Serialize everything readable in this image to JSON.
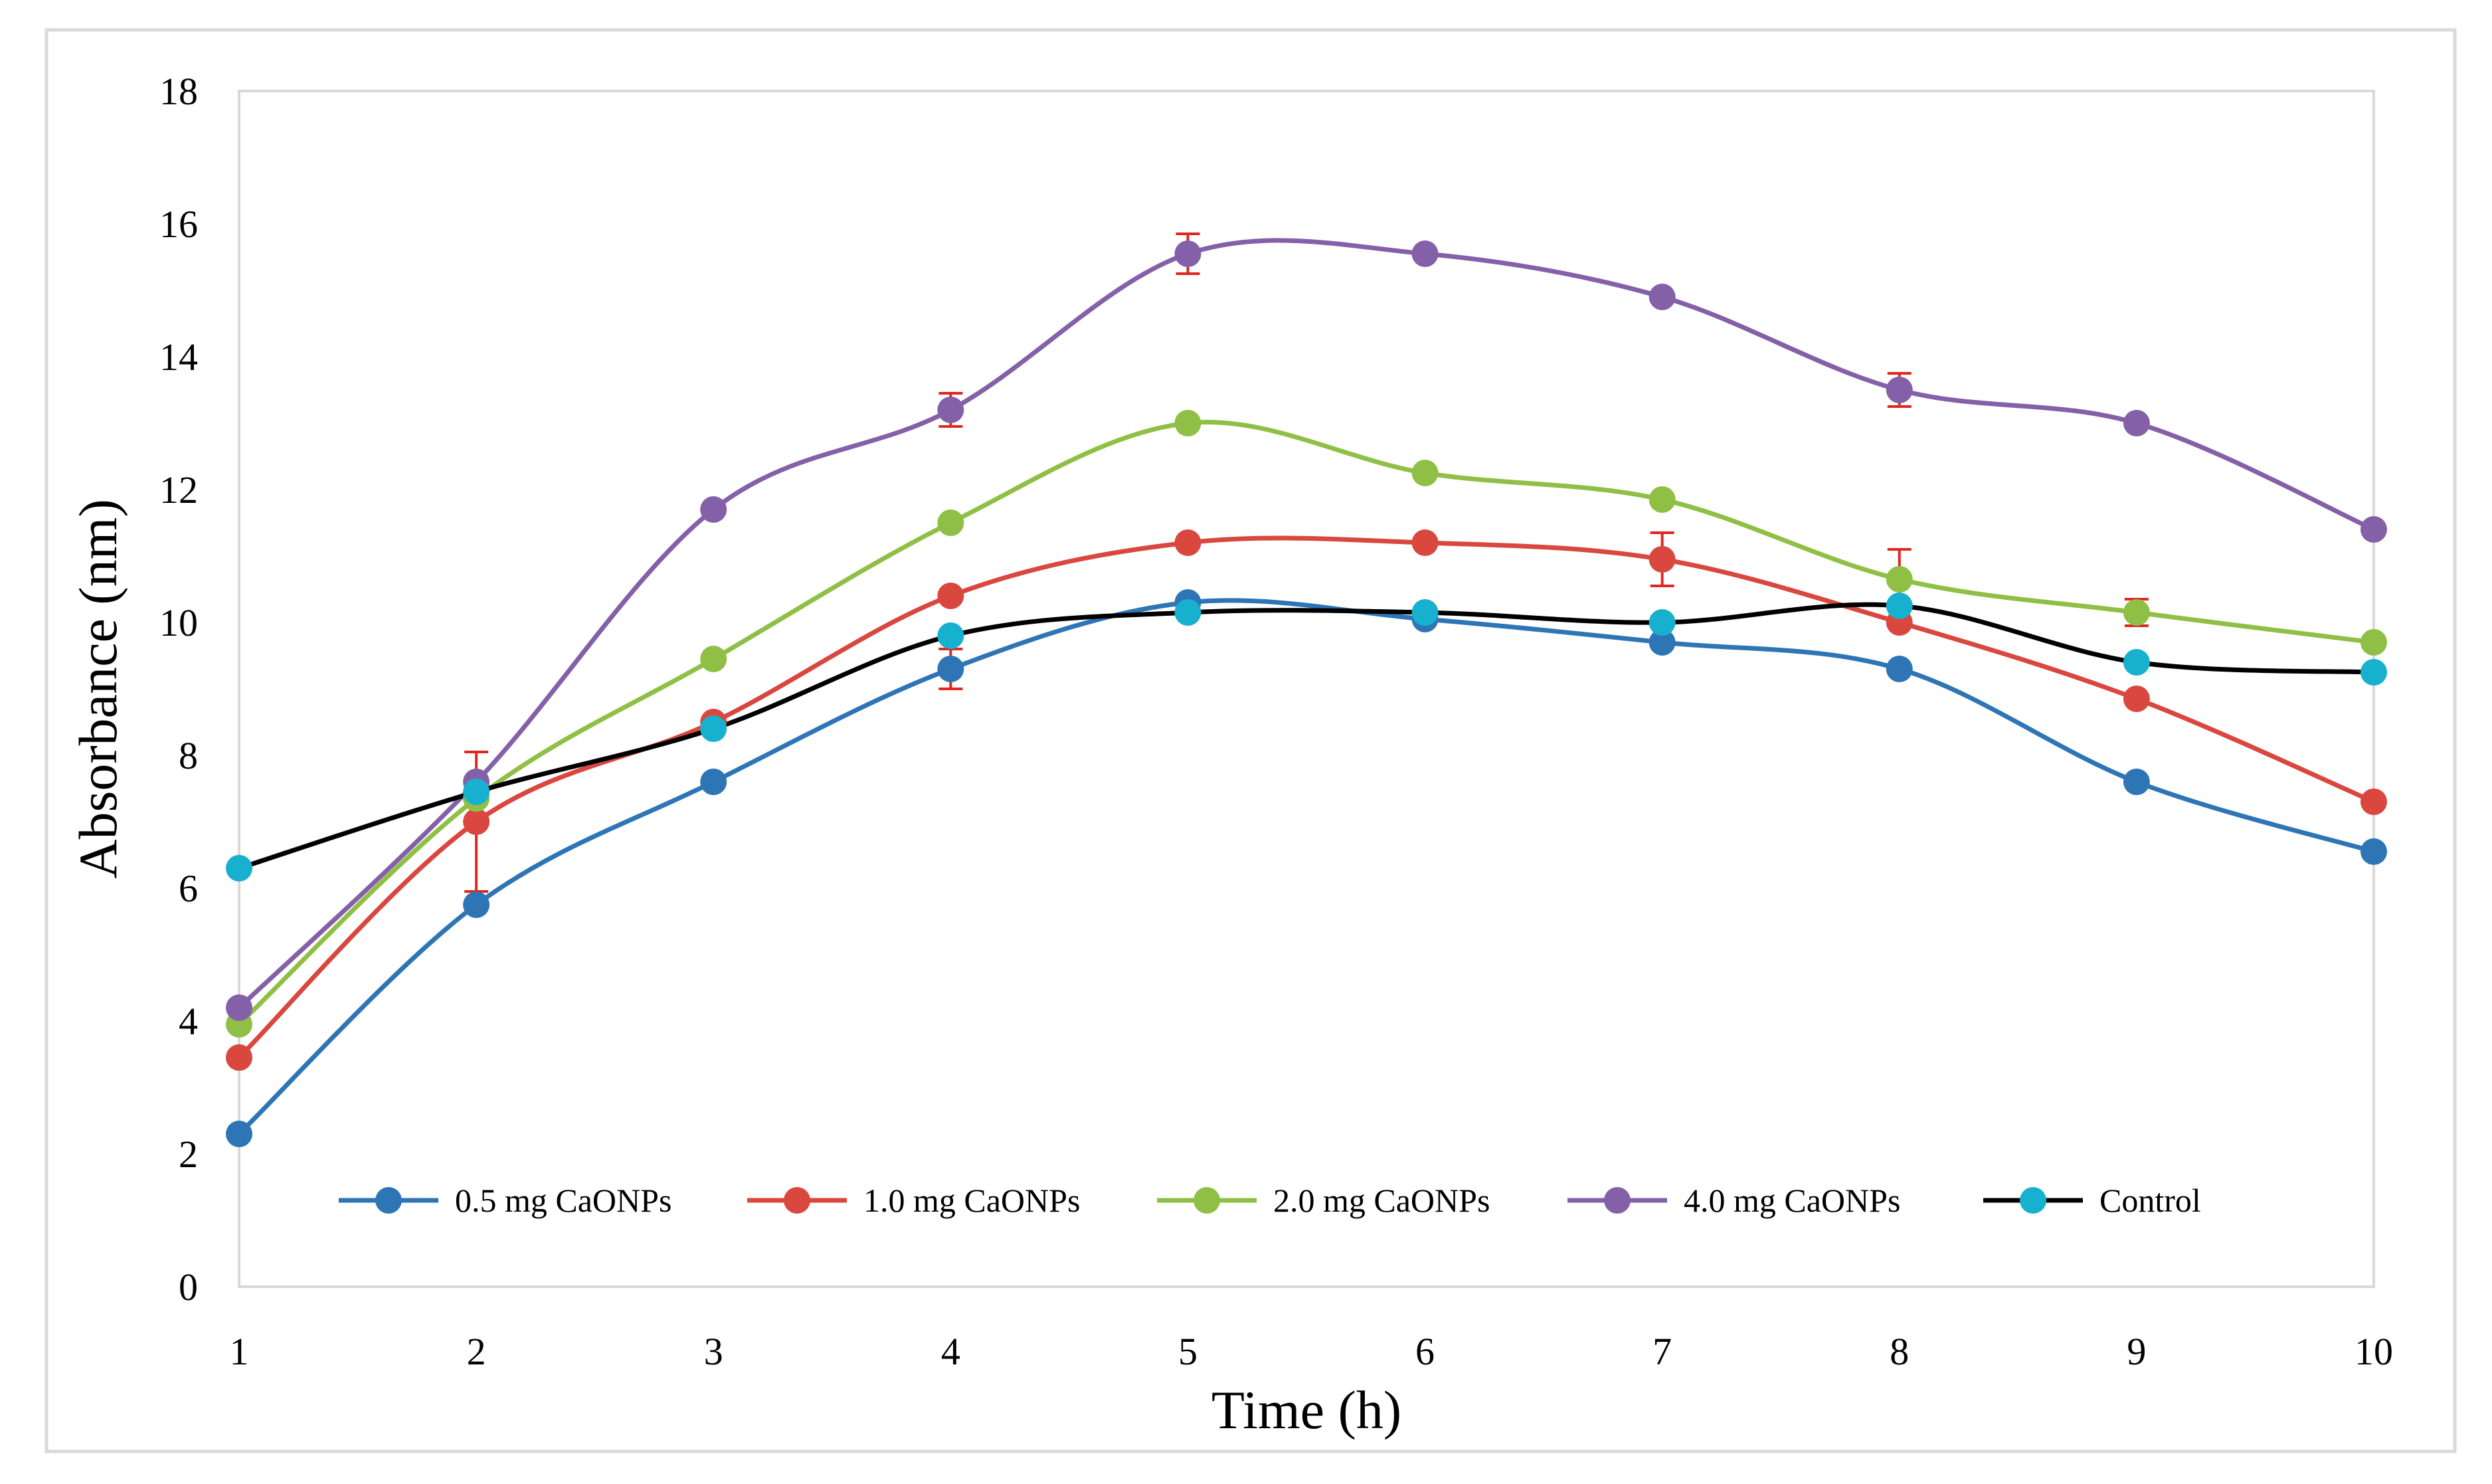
{
  "chart_data": {
    "type": "line",
    "title": "",
    "xlabel": "Time (h)",
    "ylabel": "Absorbance (nm)",
    "x": [
      1,
      2,
      3,
      4,
      5,
      6,
      7,
      8,
      9,
      10
    ],
    "x_tick_labels": [
      "1",
      "2",
      "3",
      "4",
      "5",
      "6",
      "7",
      "8",
      "9",
      "10"
    ],
    "ylim": [
      0,
      18
    ],
    "y_ticks": [
      0,
      2,
      4,
      6,
      8,
      10,
      12,
      14,
      16,
      18
    ],
    "y_tick_labels": [
      "0",
      "2",
      "4",
      "6",
      "8",
      "10",
      "12",
      "14",
      "16",
      "18"
    ],
    "grid": false,
    "legend_position": "bottom",
    "series": [
      {
        "name": "0.5 mg CaONPs",
        "line_color": "#2e75b6",
        "marker_color": "#2e75b6",
        "values": [
          2.3,
          5.75,
          7.6,
          9.3,
          10.3,
          10.05,
          9.7,
          9.3,
          7.6,
          6.55
        ],
        "errors": [
          0,
          0,
          0,
          0.3,
          0,
          0,
          0,
          0,
          0,
          0
        ]
      },
      {
        "name": "1.0 mg CaONPs",
        "line_color": "#d9473f",
        "marker_color": "#d9473f",
        "values": [
          3.45,
          7.0,
          8.5,
          10.4,
          11.2,
          11.2,
          10.95,
          10.0,
          8.85,
          7.3
        ],
        "errors": [
          0,
          1.05,
          0,
          0,
          0,
          0,
          0.4,
          0,
          0,
          0
        ]
      },
      {
        "name": "2.0 mg CaONPs",
        "line_color": "#8fc045",
        "marker_color": "#8fc045",
        "values": [
          3.95,
          7.35,
          9.45,
          11.5,
          13.0,
          12.25,
          11.85,
          10.65,
          10.15,
          9.7
        ],
        "errors": [
          0,
          0,
          0,
          0,
          0,
          0,
          0,
          0.45,
          0.2,
          0
        ]
      },
      {
        "name": "4.0 mg CaONPs",
        "line_color": "#8460a8",
        "marker_color": "#8460a8",
        "values": [
          4.2,
          7.6,
          11.7,
          13.2,
          15.55,
          15.55,
          14.9,
          13.5,
          13.0,
          11.4
        ],
        "errors": [
          0,
          0,
          0,
          0.25,
          0.3,
          0,
          0,
          0.25,
          0,
          0
        ]
      },
      {
        "name": "Control",
        "line_color": "#000000",
        "marker_color": "#17b0cf",
        "values": [
          6.3,
          7.45,
          8.4,
          9.8,
          10.15,
          10.15,
          10.0,
          10.25,
          9.4,
          9.25
        ],
        "errors": [
          0,
          0,
          0,
          0,
          0,
          0,
          0,
          0,
          0,
          0
        ]
      }
    ]
  }
}
